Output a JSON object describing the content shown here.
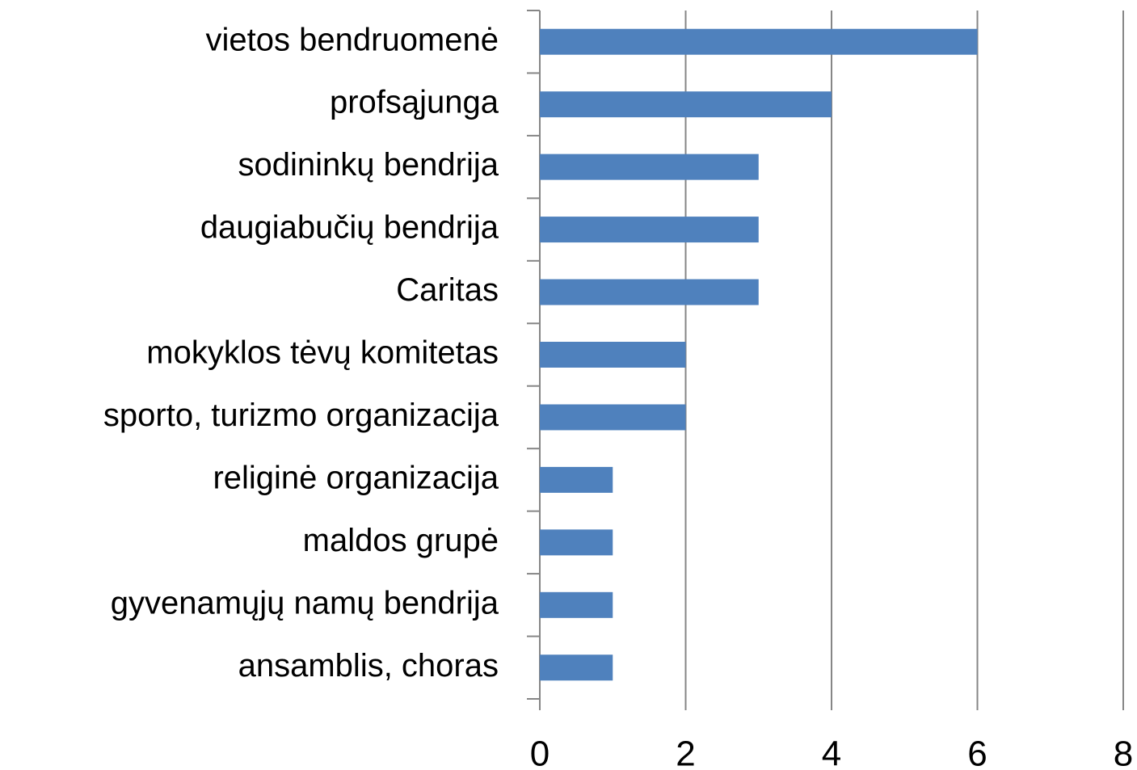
{
  "chart_data": {
    "type": "bar",
    "orientation": "horizontal",
    "categories": [
      "vietos bendruomenė",
      "profsąjunga",
      "sodininkų bendrija",
      "daugiabučių bendrija",
      "Caritas",
      "mokyklos tėvų komitetas",
      "sporto, turizmo organizacija",
      "religinė organizacija",
      "maldos grupė",
      "gyvenamųjų namų bendrija",
      "ansamblis, choras"
    ],
    "values": [
      6,
      4,
      3,
      3,
      3,
      2,
      2,
      1,
      1,
      1,
      1
    ],
    "color": "#4f81bd",
    "xlim": [
      0,
      8
    ],
    "xticks": [
      0,
      2,
      4,
      6,
      8
    ],
    "grid": true
  }
}
